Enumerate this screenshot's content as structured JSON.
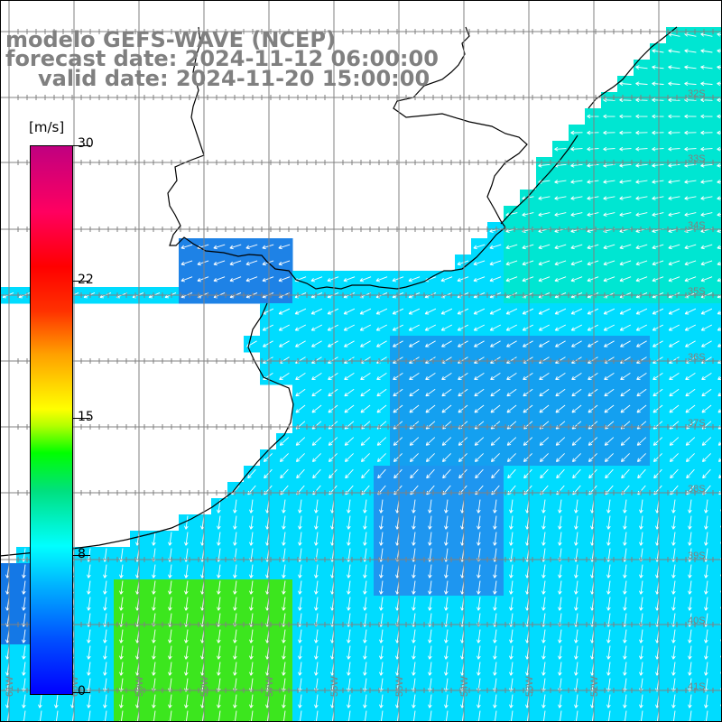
{
  "title": {
    "line1": "modelo GEFS-WAVE (NCEP)",
    "line2": "forecast date: 2024-11-12 06:00:00",
    "line3": "valid date: 2024-11-20 15:00:00"
  },
  "colorbar": {
    "unit": "[m/s]",
    "ticks": [
      "30",
      "22",
      "15",
      "8",
      "0"
    ]
  },
  "map": {
    "lat_labels": [
      "32S",
      "33S",
      "34S",
      "35S",
      "36S",
      "37S",
      "38S",
      "39S",
      "40S",
      "41S"
    ],
    "lon_labels": [
      "61W",
      "60W",
      "59W",
      "58W",
      "57W",
      "56W",
      "55W",
      "54W",
      "53W",
      "52W"
    ],
    "field": "wind speed",
    "arrow_color": "#ffffff",
    "grid_color": "#808080",
    "coast_color": "#000000"
  }
}
